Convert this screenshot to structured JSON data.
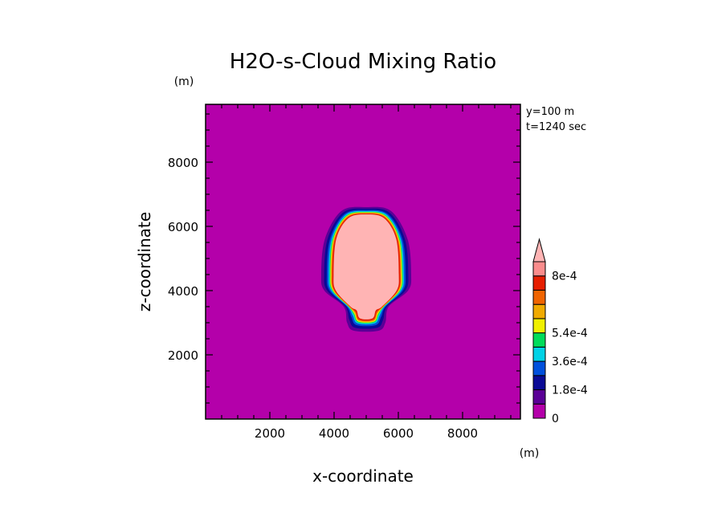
{
  "chart_data": {
    "type": "heatmap",
    "title": "H2O-s-Cloud Mixing Ratio",
    "xlabel": "x-coordinate",
    "ylabel": "z-coordinate",
    "x_unit": "(m)",
    "y_unit": "(m)",
    "annotations": [
      "y=100 m",
      "t=1240 sec"
    ],
    "xlim": [
      0,
      9800
    ],
    "ylim": [
      0,
      9800
    ],
    "x_ticks": [
      2000,
      4000,
      6000,
      8000
    ],
    "y_ticks": [
      2000,
      4000,
      6000,
      8000
    ],
    "x_tick_labels": [
      "2000",
      "4000",
      "6000",
      "8000"
    ],
    "y_tick_labels": [
      "2000",
      "4000",
      "6000",
      "8000"
    ],
    "background_value": 0,
    "cloud": {
      "center_x": 5000,
      "top_z": 6600,
      "bottom_z": 2750,
      "widest_z": 4500,
      "max_width": 2800
    },
    "colorbar": {
      "levels": [
        0,
        9e-05,
        0.00018,
        0.00027,
        0.00036,
        0.00045,
        0.00054,
        0.00063,
        0.00072,
        0.0008
      ],
      "tick_labels": [
        "0",
        "1.8e-4",
        "3.6e-4",
        "5.4e-4",
        "8e-4"
      ],
      "tick_values": [
        0,
        0.00018,
        0.00036,
        0.00054,
        0.0008
      ],
      "colors": [
        "#b400aa",
        "#5a0096",
        "#0a0a96",
        "#0050dc",
        "#00d2e6",
        "#00dc5a",
        "#f0f000",
        "#f0aa00",
        "#f06400",
        "#e61e00",
        "#fa8c8c"
      ],
      "extend_color": "#ffb4b4"
    }
  }
}
